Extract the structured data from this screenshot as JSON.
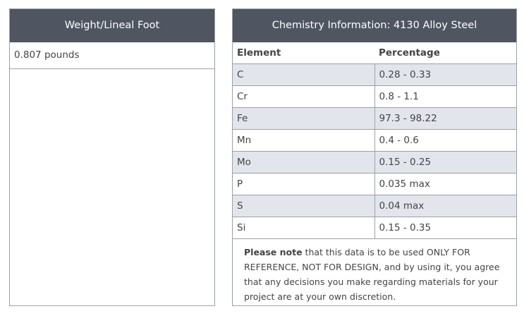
{
  "weight": {
    "header": "Weight/Lineal Foot",
    "value": "0.807 pounds"
  },
  "chemistry": {
    "header": "Chemistry Information: 4130 Alloy Steel",
    "columns": [
      "Element",
      "Percentage"
    ],
    "rows": [
      {
        "element": "C",
        "percentage": "0.28 - 0.33"
      },
      {
        "element": "Cr",
        "percentage": "0.8 - 1.1"
      },
      {
        "element": "Fe",
        "percentage": "97.3 - 98.22"
      },
      {
        "element": "Mn",
        "percentage": "0.4 - 0.6"
      },
      {
        "element": "Mo",
        "percentage": "0.15 - 0.25"
      },
      {
        "element": "P",
        "percentage": "0.035 max"
      },
      {
        "element": "S",
        "percentage": "0.04 max"
      },
      {
        "element": "Si",
        "percentage": "0.15 - 0.35"
      }
    ],
    "note": {
      "bold": "Please note",
      "text": " that this data is to be used ONLY FOR REFERENCE, NOT FOR DESIGN, and by using it, you agree that any decisions you make regarding materials for your project are at your own discretion."
    }
  },
  "colors": {
    "header_bg": "#4f5561",
    "stripe_bg": "#e3e5ed",
    "border": "#9aa0a8"
  }
}
